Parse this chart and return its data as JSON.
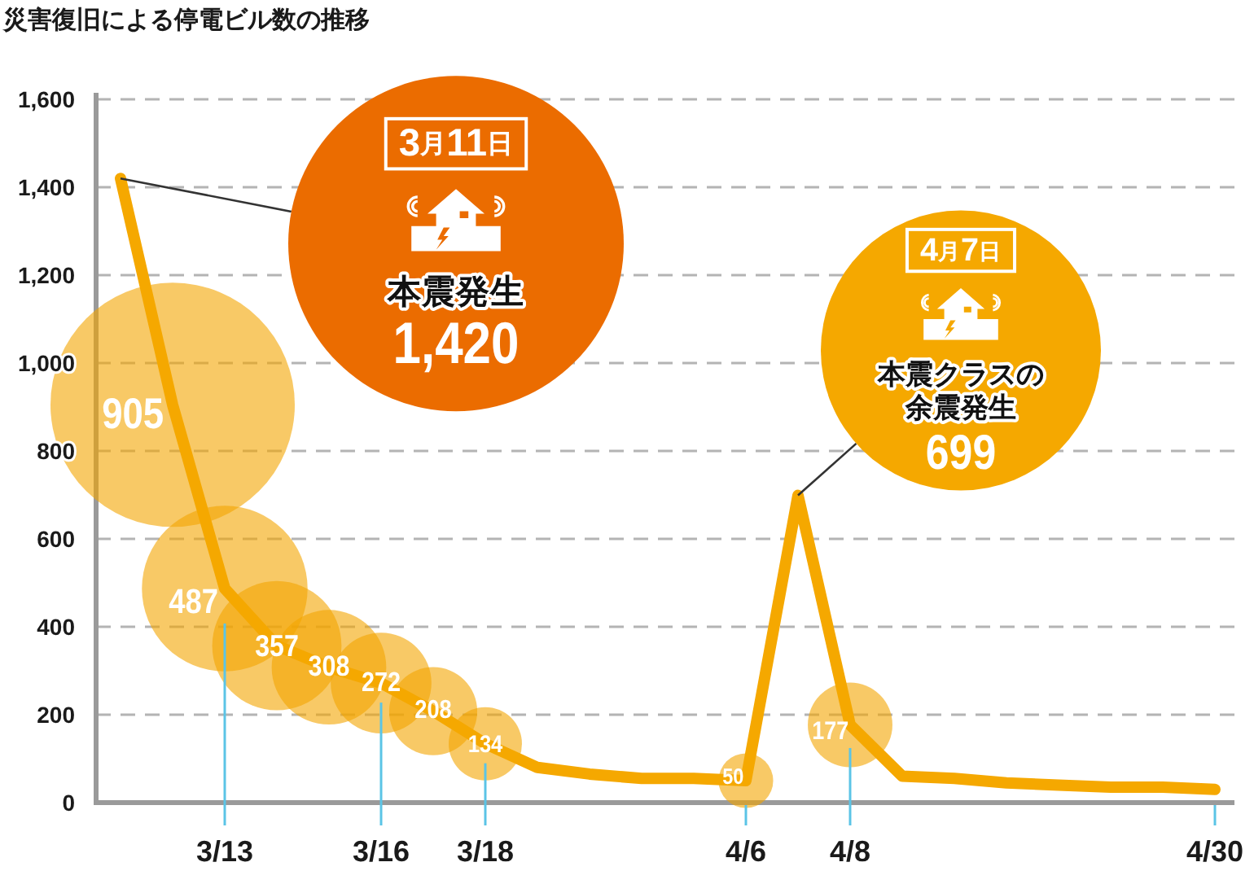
{
  "chart_data": {
    "type": "line",
    "title": "災害復旧による停電ビル数の推移",
    "categories": [
      null,
      null,
      "3/13",
      null,
      null,
      "3/16",
      null,
      "3/18",
      null,
      null,
      null,
      null,
      "4/6",
      null,
      "4/8",
      null,
      null,
      null,
      null,
      null,
      null,
      "4/30"
    ],
    "series": [
      {
        "type": "line",
        "color": "#f5a800",
        "values": [
          1420,
          905,
          487,
          357,
          308,
          272,
          208,
          134,
          80,
          65,
          55,
          55,
          50,
          699,
          177,
          60,
          55,
          45,
          40,
          35,
          35,
          30
        ]
      },
      {
        "type": "bubble",
        "color": "#f8c966",
        "values": [
          null,
          905,
          487,
          357,
          308,
          272,
          208,
          134,
          null,
          null,
          null,
          null,
          50,
          null,
          177,
          null,
          null,
          null,
          null,
          null,
          null,
          null
        ],
        "sizes": [
          null,
          1,
          0.46,
          0.28,
          0.22,
          0.17,
          0.13,
          0.09,
          null,
          null,
          null,
          null,
          0.05,
          null,
          0.12,
          null,
          null,
          null,
          null,
          null,
          null,
          null
        ],
        "value_labels": [
          null,
          "905",
          "487",
          "357",
          "308",
          "272",
          "208",
          "134",
          null,
          null,
          null,
          null,
          "50",
          null,
          "177",
          null,
          null,
          null,
          null,
          null,
          null,
          null
        ]
      }
    ],
    "ylim": [
      0,
      1600
    ],
    "yticks": [
      0,
      200,
      400,
      600,
      800,
      {
        "value": 1000,
        "label": "1,000"
      },
      {
        "value": 1200,
        "label": "1,200"
      },
      {
        "value": 1400,
        "label": "1,400"
      },
      {
        "value": 1600,
        "label": "1,600"
      }
    ],
    "grid": "y",
    "annotations": [
      "3月11日",
      "本震発生",
      "1,420",
      "4月7日",
      "本震クラスの余震発生",
      "699"
    ]
  }
}
